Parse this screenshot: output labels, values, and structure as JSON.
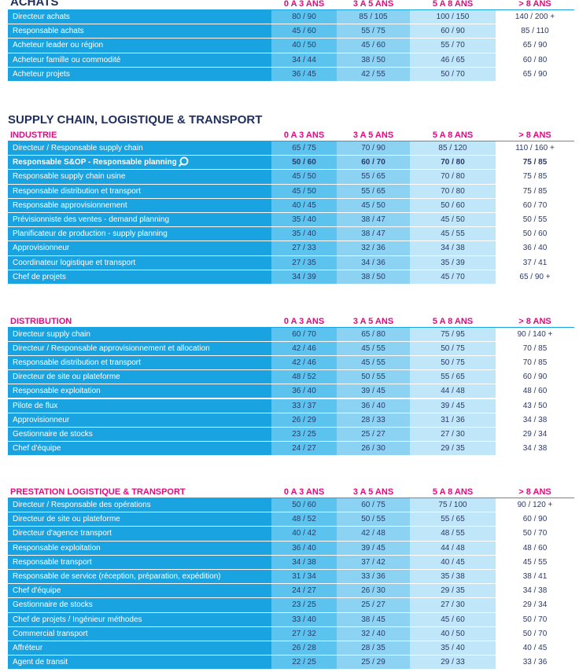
{
  "sections": [
    {
      "title": "ACHATS",
      "columns": [
        "0 A 3 ANS",
        "3 A 5 ANS",
        "5 A 8 ANS",
        "> 8 ANS"
      ],
      "rows": [
        [
          "Directeur achats",
          "80 / 90",
          "85 / 105",
          "100 / 150",
          "140 / 200 +"
        ],
        [
          "Responsable achats",
          "45 / 60",
          "55 / 75",
          "60 / 90",
          "85 / 110"
        ],
        [
          "Acheteur leader ou région",
          "40 / 50",
          "45 / 60",
          "55 / 70",
          "65 / 90"
        ],
        [
          "Acheteur famille ou commodité",
          "34 / 44",
          "38 / 50",
          "46 / 65",
          "60 / 80"
        ],
        [
          "Acheteur projets",
          "36 / 45",
          "42 / 55",
          "50 / 70",
          "65 / 90"
        ]
      ]
    },
    {
      "title": "SUPPLY CHAIN, LOGISTIQUE & TRANSPORT",
      "tables": [
        {
          "label": "INDUSTRIE",
          "columns": [
            "0 A 3 ANS",
            "3 A 5 ANS",
            "5 A 8 ANS",
            "> 8 ANS"
          ],
          "rows": [
            [
              "Directeur / Responsable supply chain",
              "65 / 75",
              "70 / 90",
              "85 / 120",
              "110 / 160 +"
            ],
            [
              "Responsable S&OP - Responsable planning",
              "50 / 60",
              "60 / 70",
              "70 / 80",
              "75 / 85"
            ],
            [
              "Responsable supply chain usine",
              "45 / 50",
              "55 / 65",
              "70 / 80",
              "75 / 85"
            ],
            [
              "Responsable distribution et transport",
              "45 / 50",
              "55 / 65",
              "70 / 80",
              "75 / 85"
            ],
            [
              "Responsable approvisionnement",
              "40 / 45",
              "45 / 50",
              "50 / 60",
              "60 / 70"
            ],
            [
              "Prévisionniste des ventes - demand planning",
              "35 / 40",
              "38 / 47",
              "45 / 50",
              "50 / 55"
            ],
            [
              "Planificateur de production - supply planning",
              "35 / 40",
              "38 / 47",
              "45 / 55",
              "50 / 60"
            ],
            [
              "Approvisionneur",
              "27 / 33",
              "32 / 36",
              "34 / 38",
              "36 / 40"
            ],
            [
              "Coordinateur logistique et transport",
              "27 / 35",
              "34 / 36",
              "35 / 39",
              "37 / 41"
            ],
            [
              "Chef de projets",
              "34 / 39",
              "38 / 50",
              "45 / 70",
              "65 / 90 +"
            ]
          ]
        },
        {
          "label": "DISTRIBUTION",
          "columns": [
            "0 A 3 ANS",
            "3 A 5 ANS",
            "5 A 8 ANS",
            "> 8 ANS"
          ],
          "rows": [
            [
              "Directeur supply chain",
              "60 / 70",
              "65 / 80",
              "75 / 95",
              "90 / 140 +"
            ],
            [
              "Directeur / Responsable approvisionnement et allocation",
              "42 / 46",
              "45 / 55",
              "50 / 75",
              "70 / 85"
            ],
            [
              "Responsable distribution et transport",
              "42 / 46",
              "45 / 55",
              "50 / 75",
              "70 / 85"
            ],
            [
              "Directeur de site ou plateforme",
              "48 / 52",
              "50 / 55",
              "55 / 65",
              "60 / 90"
            ],
            [
              "Responsable exploitation",
              "36 / 40",
              "39 / 45",
              "44 / 48",
              "48 / 60"
            ],
            [
              "Pilote de flux",
              "33 / 37",
              "36 / 40",
              "39 / 45",
              "43 / 50"
            ],
            [
              "Approvisionneur",
              "26 / 29",
              "28 / 33",
              "31 / 36",
              "34 / 38"
            ],
            [
              "Gestionnaire de stocks",
              "23 / 25",
              "25 / 27",
              "27 / 30",
              "29 / 34"
            ],
            [
              "Chef d'équipe",
              "24 / 27",
              "26 / 30",
              "29 / 35",
              "34 / 38"
            ]
          ]
        },
        {
          "label": "PRESTATION LOGISTIQUE & TRANSPORT",
          "columns": [
            "0 A 3 ANS",
            "3 A 5 ANS",
            "5 A 8 ANS",
            "> 8 ANS"
          ],
          "rows": [
            [
              "Directeur / Responsable des opérations",
              "50 / 60",
              "60 / 75",
              "75 / 100",
              "90 / 120 +"
            ],
            [
              "Directeur de site ou plateforme",
              "48 / 52",
              "50 / 55",
              "55 / 65",
              "60 / 90"
            ],
            [
              "Directeur d'agence transport",
              "40 / 42",
              "42 / 48",
              "48 / 55",
              "50 / 70"
            ],
            [
              "Responsable exploitation",
              "36 / 40",
              "39 / 45",
              "44 / 48",
              "48 / 60"
            ],
            [
              "Responsable transport",
              "34 / 38",
              "37 / 42",
              "40 / 45",
              "45 / 55"
            ],
            [
              "Responsable de service (réception, préparation, expédition)",
              "31 / 34",
              "33 / 36",
              "35 / 38",
              "38 / 41"
            ],
            [
              "Chef d'équipe",
              "24 / 27",
              "26 / 30",
              "29 / 35",
              "34 / 38"
            ],
            [
              "Gestionnaire de stocks",
              "23 / 25",
              "25 / 27",
              "27 / 30",
              "29 / 34"
            ],
            [
              "Chef de projets / Ingénieur méthodes",
              "33 / 40",
              "38 / 45",
              "45 / 60",
              "50 / 70"
            ],
            [
              "Commercial transport",
              "27 / 32",
              "32 / 40",
              "40 / 50",
              "50 / 70"
            ],
            [
              "Affréteur",
              "26 / 28",
              "28 / 35",
              "35 / 40",
              "40 / 45"
            ],
            [
              "Agent de transit",
              "22 / 25",
              "25 / 29",
              "29 / 33",
              "33 / 36"
            ]
          ]
        }
      ]
    }
  ]
}
